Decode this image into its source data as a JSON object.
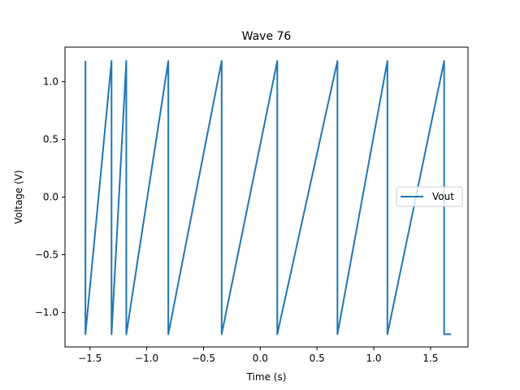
{
  "chart_data": {
    "type": "line",
    "title": "Wave 76",
    "xlabel": "Time (s)",
    "ylabel": "Voltage (V)",
    "xlim": [
      -1.72,
      1.83
    ],
    "ylim": [
      -1.3,
      1.3
    ],
    "xticks": [
      -1.5,
      -1.0,
      -0.5,
      0.0,
      0.5,
      1.0,
      1.5
    ],
    "xtick_labels": [
      "−1.5",
      "−1.0",
      "−0.5",
      "0.0",
      "0.5",
      "1.0",
      "1.5"
    ],
    "yticks": [
      -1.0,
      -0.5,
      0.0,
      0.5,
      1.0
    ],
    "ytick_labels": [
      "−1.0",
      "−0.5",
      "0.0",
      "0.5",
      "1.0"
    ],
    "grid": false,
    "legend_position": "center-right",
    "series": [
      {
        "name": "Vout",
        "color": "#1f77b4",
        "x": [
          -1.54,
          -1.54,
          -1.31,
          -1.31,
          -1.18,
          -1.18,
          -0.81,
          -0.81,
          -0.34,
          -0.34,
          0.15,
          0.15,
          0.68,
          0.68,
          1.12,
          1.12,
          1.62,
          1.62,
          1.68
        ],
        "y": [
          1.18,
          -1.19,
          1.18,
          -1.19,
          1.18,
          -1.19,
          1.18,
          -1.19,
          1.18,
          -1.19,
          1.18,
          -1.19,
          1.18,
          -1.19,
          1.18,
          -1.19,
          1.18,
          -1.19,
          -1.19
        ]
      }
    ]
  }
}
